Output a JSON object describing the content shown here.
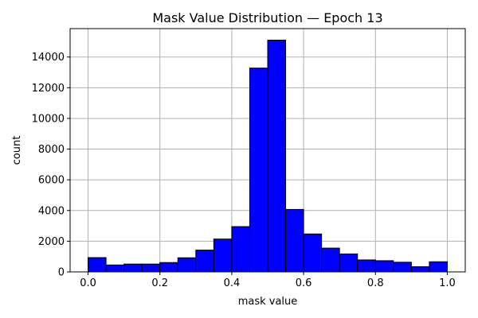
{
  "chart_data": {
    "type": "bar",
    "title": "Mask Value Distribution — Epoch 13",
    "xlabel": "mask value",
    "ylabel": "count",
    "xlim": [
      -0.05,
      1.05
    ],
    "ylim": [
      0,
      15850
    ],
    "grid": true,
    "bar_color": "#0000ff",
    "edge_color": "#000000",
    "grid_color": "#b0b0b0",
    "bins": [
      {
        "start": 0.0,
        "end": 0.05,
        "count": 930
      },
      {
        "start": 0.05,
        "end": 0.1,
        "count": 450
      },
      {
        "start": 0.1,
        "end": 0.15,
        "count": 510
      },
      {
        "start": 0.15,
        "end": 0.2,
        "count": 510
      },
      {
        "start": 0.2,
        "end": 0.25,
        "count": 610
      },
      {
        "start": 0.25,
        "end": 0.3,
        "count": 920
      },
      {
        "start": 0.3,
        "end": 0.35,
        "count": 1420
      },
      {
        "start": 0.35,
        "end": 0.4,
        "count": 2140
      },
      {
        "start": 0.4,
        "end": 0.45,
        "count": 2950
      },
      {
        "start": 0.45,
        "end": 0.5,
        "count": 13280
      },
      {
        "start": 0.5,
        "end": 0.55,
        "count": 15100
      },
      {
        "start": 0.55,
        "end": 0.6,
        "count": 4070
      },
      {
        "start": 0.6,
        "end": 0.65,
        "count": 2470
      },
      {
        "start": 0.65,
        "end": 0.7,
        "count": 1550
      },
      {
        "start": 0.7,
        "end": 0.75,
        "count": 1170
      },
      {
        "start": 0.75,
        "end": 0.8,
        "count": 780
      },
      {
        "start": 0.8,
        "end": 0.85,
        "count": 730
      },
      {
        "start": 0.85,
        "end": 0.9,
        "count": 630
      },
      {
        "start": 0.9,
        "end": 0.95,
        "count": 340
      },
      {
        "start": 0.95,
        "end": 1.0,
        "count": 660
      }
    ],
    "x_ticks": [
      {
        "value": 0.0,
        "label": "0.0"
      },
      {
        "value": 0.2,
        "label": "0.2"
      },
      {
        "value": 0.4,
        "label": "0.4"
      },
      {
        "value": 0.6,
        "label": "0.6"
      },
      {
        "value": 0.8,
        "label": "0.8"
      },
      {
        "value": 1.0,
        "label": "1.0"
      }
    ],
    "y_ticks": [
      {
        "value": 0,
        "label": "0"
      },
      {
        "value": 2000,
        "label": "2000"
      },
      {
        "value": 4000,
        "label": "4000"
      },
      {
        "value": 6000,
        "label": "6000"
      },
      {
        "value": 8000,
        "label": "8000"
      },
      {
        "value": 10000,
        "label": "10000"
      },
      {
        "value": 12000,
        "label": "12000"
      },
      {
        "value": 14000,
        "label": "14000"
      }
    ]
  }
}
